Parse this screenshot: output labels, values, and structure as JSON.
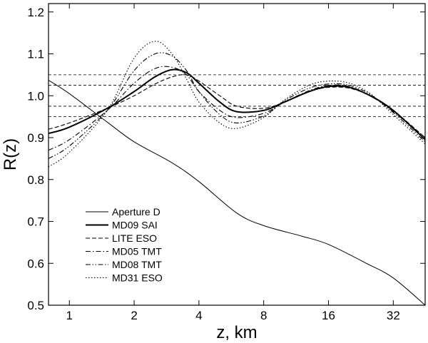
{
  "chart_data": {
    "type": "line",
    "title": "",
    "xlabel": "z, km",
    "ylabel": "R(z)",
    "xscale": "log2",
    "xlim": [
      0.8,
      45
    ],
    "ylim": [
      0.5,
      1.22
    ],
    "xticks": [
      1,
      2,
      4,
      8,
      16,
      32
    ],
    "xtick_labels": [
      "1",
      "2",
      "4",
      "8",
      "16",
      "32"
    ],
    "yticks": [
      0.5,
      0.6,
      0.7,
      0.8,
      0.9,
      1.0,
      1.1,
      1.2
    ],
    "ytick_labels": [
      "0.5",
      "0.6",
      "0.7",
      "0.8",
      "0.9",
      "1.0",
      "1.1",
      "1.2"
    ],
    "reference_lines": [
      1.05,
      1.025,
      0.975,
      0.95
    ],
    "legend_position": "lower-left",
    "series": [
      {
        "name": "Aperture D",
        "style": "solid-thin",
        "x": [
          0.8,
          1.0,
          1.5,
          2.0,
          3.0,
          4.0,
          6.0,
          8.0,
          12.0,
          16.0,
          24.0,
          32.0,
          45.0
        ],
        "y": [
          1.037,
          1.005,
          0.937,
          0.89,
          0.84,
          0.795,
          0.72,
          0.69,
          0.665,
          0.645,
          0.6,
          0.565,
          0.5
        ]
      },
      {
        "name": "MD09 SAI",
        "style": "solid-thick",
        "x": [
          0.8,
          1.0,
          1.5,
          2.0,
          2.5,
          3.0,
          3.5,
          4.0,
          5.0,
          6.0,
          8.0,
          10.0,
          13.0,
          16.0,
          20.0,
          25.0,
          32.0,
          45.0
        ],
        "y": [
          0.91,
          0.925,
          0.97,
          1.01,
          1.045,
          1.062,
          1.055,
          1.03,
          0.985,
          0.962,
          0.965,
          0.985,
          1.01,
          1.022,
          1.02,
          1.0,
          0.965,
          0.895
        ]
      },
      {
        "name": "LITE ESO",
        "style": "dashed",
        "x": [
          0.8,
          1.0,
          1.5,
          2.0,
          2.5,
          3.0,
          3.5,
          4.0,
          5.0,
          6.0,
          8.0,
          10.0,
          13.0,
          16.0,
          20.0,
          25.0,
          32.0,
          45.0
        ],
        "y": [
          0.92,
          0.935,
          0.97,
          1.0,
          1.028,
          1.045,
          1.05,
          1.035,
          1.0,
          0.975,
          0.97,
          0.985,
          1.01,
          1.02,
          1.018,
          1.0,
          0.965,
          0.9
        ]
      },
      {
        "name": "MD05 TMT",
        "style": "dashdot",
        "x": [
          0.8,
          1.0,
          1.5,
          2.0,
          2.5,
          3.0,
          3.5,
          4.0,
          5.0,
          6.0,
          8.0,
          10.0,
          13.0,
          16.0,
          20.0,
          25.0,
          32.0,
          45.0
        ],
        "y": [
          0.87,
          0.895,
          0.965,
          1.03,
          1.065,
          1.068,
          1.05,
          1.01,
          0.965,
          0.948,
          0.958,
          0.985,
          1.012,
          1.025,
          1.022,
          1.0,
          0.962,
          0.9
        ]
      },
      {
        "name": "MD08 TMT",
        "style": "dashdotdot",
        "x": [
          0.8,
          1.0,
          1.5,
          2.0,
          2.5,
          3.0,
          3.5,
          4.0,
          5.0,
          6.0,
          8.0,
          10.0,
          13.0,
          16.0,
          20.0,
          25.0,
          32.0,
          45.0
        ],
        "y": [
          0.85,
          0.88,
          0.965,
          1.06,
          1.1,
          1.095,
          1.06,
          1.01,
          0.955,
          0.935,
          0.952,
          0.988,
          1.018,
          1.028,
          1.025,
          1.003,
          0.96,
          0.89
        ]
      },
      {
        "name": "MD31 ESO",
        "style": "dotted",
        "x": [
          0.8,
          1.0,
          1.5,
          2.0,
          2.5,
          3.0,
          3.5,
          4.0,
          5.0,
          6.0,
          8.0,
          10.0,
          13.0,
          16.0,
          20.0,
          25.0,
          32.0,
          45.0
        ],
        "y": [
          0.83,
          0.865,
          0.965,
          1.09,
          1.13,
          1.1,
          1.04,
          0.985,
          0.935,
          0.922,
          0.948,
          0.99,
          1.025,
          1.035,
          1.03,
          1.005,
          0.955,
          0.885
        ]
      }
    ]
  }
}
